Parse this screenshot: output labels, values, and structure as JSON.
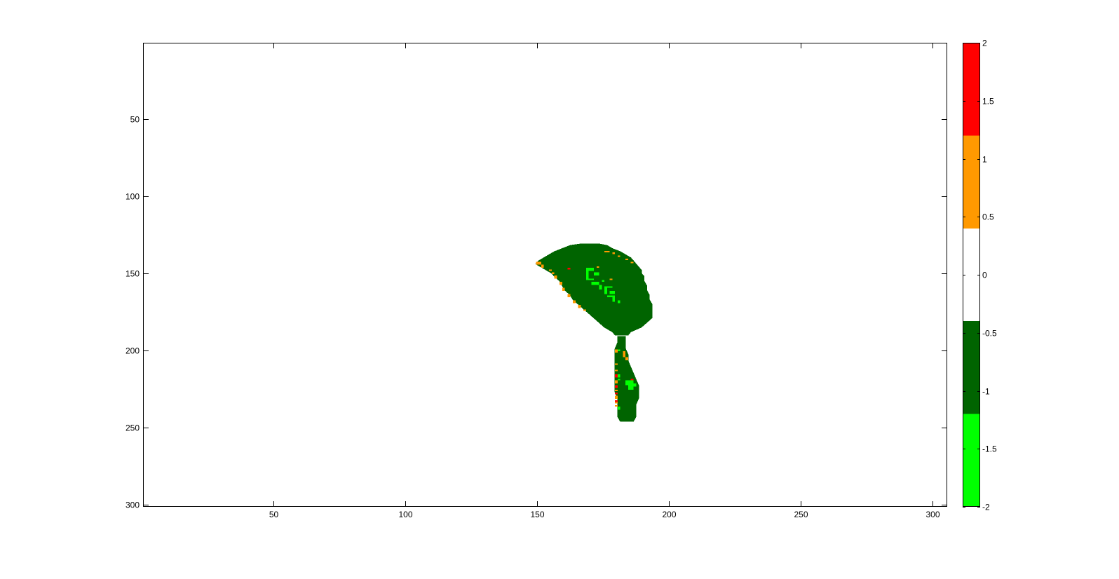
{
  "figure": {
    "background": "#ffffff"
  },
  "chart_data": {
    "type": "heatmap",
    "title": "",
    "xlabel": "",
    "ylabel": "",
    "xlim": [
      0.5,
      305.5
    ],
    "ylim": [
      0.5,
      301.5
    ],
    "y_reversed": true,
    "grid": false,
    "x_ticks": [
      50,
      100,
      150,
      200,
      250,
      300
    ],
    "y_ticks": [
      50,
      100,
      150,
      200,
      250,
      300
    ],
    "colorbar": {
      "location": "right",
      "clim": [
        -2,
        2
      ],
      "ticks": [
        2,
        1.5,
        1,
        0.5,
        0,
        -0.5,
        -1,
        -1.5,
        -2
      ],
      "tick_labels": [
        "2",
        "1.5",
        "1",
        "0.5",
        "0",
        "-0.5",
        "-1",
        "-1.5",
        "-2"
      ],
      "bands": [
        {
          "from": -2,
          "to": -1.2,
          "color": "#00ff00"
        },
        {
          "from": -1.2,
          "to": -0.4,
          "color": "#006400"
        },
        {
          "from": -0.4,
          "to": 0.4,
          "color": "#ffffff"
        },
        {
          "from": 0.4,
          "to": 1.2,
          "color": "#ff9900"
        },
        {
          "from": 1.2,
          "to": 2,
          "color": "#ff0000"
        }
      ]
    },
    "regions": [
      {
        "name": "main-lobe",
        "value": -0.8,
        "color": "#006400",
        "rows": [
          {
            "y": 131,
            "x": [
              167,
              173
            ]
          },
          {
            "y": 132,
            "x": [
              163,
              176
            ]
          },
          {
            "y": 134,
            "x": [
              160,
              178
            ]
          },
          {
            "y": 136,
            "x": [
              157,
              181
            ]
          },
          {
            "y": 138,
            "x": [
              155,
              183
            ]
          },
          {
            "y": 140,
            "x": [
              153,
              185
            ]
          },
          {
            "y": 142,
            "x": [
              151,
              186
            ]
          },
          {
            "y": 144,
            "x": [
              150,
              187
            ]
          },
          {
            "y": 146,
            "x": [
              152,
              188
            ]
          },
          {
            "y": 148,
            "x": [
              154,
              189
            ]
          },
          {
            "y": 150,
            "x": [
              156,
              189
            ]
          },
          {
            "y": 152,
            "x": [
              157,
              190
            ]
          },
          {
            "y": 155,
            "x": [
              159,
              190
            ]
          },
          {
            "y": 158,
            "x": [
              160,
              191
            ]
          },
          {
            "y": 161,
            "x": [
              161,
              191
            ]
          },
          {
            "y": 164,
            "x": [
              163,
              192
            ]
          },
          {
            "y": 167,
            "x": [
              164,
              192
            ]
          },
          {
            "y": 170,
            "x": [
              166,
              193
            ]
          },
          {
            "y": 173,
            "x": [
              168,
              193
            ]
          },
          {
            "y": 176,
            "x": [
              170,
              193
            ]
          },
          {
            "y": 179,
            "x": [
              172,
              193
            ]
          },
          {
            "y": 182,
            "x": [
              174,
              191
            ]
          },
          {
            "y": 185,
            "x": [
              176,
              189
            ]
          },
          {
            "y": 188,
            "x": [
              179,
              185
            ]
          },
          {
            "y": 190,
            "x": [
              180,
              184
            ]
          }
        ]
      },
      {
        "name": "stem",
        "value": -0.8,
        "color": "#006400",
        "rows": [
          {
            "y": 191,
            "x": [
              181,
              183
            ]
          },
          {
            "y": 195,
            "x": [
              181,
              183
            ]
          },
          {
            "y": 199,
            "x": [
              180,
              183
            ]
          },
          {
            "y": 203,
            "x": [
              180,
              184
            ]
          },
          {
            "y": 207,
            "x": [
              180,
              184
            ]
          },
          {
            "y": 211,
            "x": [
              180,
              185
            ]
          },
          {
            "y": 215,
            "x": [
              180,
              186
            ]
          },
          {
            "y": 219,
            "x": [
              180,
              187
            ]
          },
          {
            "y": 223,
            "x": [
              180,
              188
            ]
          },
          {
            "y": 227,
            "x": [
              180,
              188
            ]
          },
          {
            "y": 231,
            "x": [
              181,
              188
            ]
          },
          {
            "y": 235,
            "x": [
              181,
              187
            ]
          },
          {
            "y": 239,
            "x": [
              181,
              187
            ]
          },
          {
            "y": 243,
            "x": [
              181,
              187
            ]
          },
          {
            "y": 246,
            "x": [
              182,
              186
            ]
          }
        ]
      }
    ],
    "spots": [
      {
        "x": 150,
        "y": 143,
        "w": 2,
        "h": 2,
        "value": 1,
        "color": "#ff9900"
      },
      {
        "x": 152,
        "y": 145,
        "w": 1,
        "h": 2,
        "value": 1,
        "color": "#ff9900"
      },
      {
        "x": 155,
        "y": 148,
        "w": 1,
        "h": 1,
        "value": 1,
        "color": "#ff9900"
      },
      {
        "x": 156,
        "y": 150,
        "w": 1,
        "h": 1,
        "value": 1,
        "color": "#ff9900"
      },
      {
        "x": 157,
        "y": 152,
        "w": 1,
        "h": 2,
        "value": 1,
        "color": "#ff9900"
      },
      {
        "x": 159,
        "y": 156,
        "w": 1,
        "h": 2,
        "value": 1,
        "color": "#ff9900"
      },
      {
        "x": 160,
        "y": 160,
        "w": 1,
        "h": 2,
        "value": 1,
        "color": "#ff9900"
      },
      {
        "x": 162,
        "y": 164,
        "w": 1,
        "h": 2,
        "value": 1,
        "color": "#ff9900"
      },
      {
        "x": 164,
        "y": 168,
        "w": 1,
        "h": 2,
        "value": 1,
        "color": "#ff9900"
      },
      {
        "x": 166,
        "y": 171,
        "w": 1,
        "h": 2,
        "value": 1,
        "color": "#ff9900"
      },
      {
        "x": 168,
        "y": 174,
        "w": 1,
        "h": 1,
        "value": 1,
        "color": "#ff9900"
      },
      {
        "x": 176,
        "y": 136,
        "w": 2,
        "h": 1,
        "value": 1,
        "color": "#ff9900"
      },
      {
        "x": 179,
        "y": 137,
        "w": 1,
        "h": 1,
        "value": 1,
        "color": "#ff9900"
      },
      {
        "x": 181,
        "y": 139,
        "w": 1,
        "h": 1,
        "value": 1,
        "color": "#ff9900"
      },
      {
        "x": 184,
        "y": 141,
        "w": 1,
        "h": 1,
        "value": 1,
        "color": "#ff9900"
      },
      {
        "x": 186,
        "y": 143,
        "w": 1,
        "h": 1,
        "value": 1,
        "color": "#ff9900"
      },
      {
        "x": 173,
        "y": 146,
        "w": 1,
        "h": 1,
        "value": 1,
        "color": "#ff9900"
      },
      {
        "x": 178,
        "y": 154,
        "w": 1,
        "h": 1,
        "value": 1,
        "color": "#ff9900"
      },
      {
        "x": 162,
        "y": 147,
        "w": 1,
        "h": 1,
        "value": 1.6,
        "color": "#ff0000"
      },
      {
        "x": 183,
        "y": 201,
        "w": 1,
        "h": 4,
        "value": 1,
        "color": "#ff9900"
      },
      {
        "x": 184,
        "y": 205,
        "w": 1,
        "h": 2,
        "value": 1,
        "color": "#ff9900"
      },
      {
        "x": 180,
        "y": 200,
        "w": 1,
        "h": 2,
        "value": 1,
        "color": "#ff9900"
      },
      {
        "x": 180,
        "y": 209,
        "w": 1,
        "h": 1,
        "value": 1,
        "color": "#ff9900"
      },
      {
        "x": 180,
        "y": 213,
        "w": 1,
        "h": 1,
        "value": 1,
        "color": "#ff9900"
      },
      {
        "x": 180,
        "y": 220,
        "w": 1,
        "h": 2,
        "value": 1,
        "color": "#ff9900"
      },
      {
        "x": 180,
        "y": 226,
        "w": 1,
        "h": 1,
        "value": 1,
        "color": "#ff9900"
      },
      {
        "x": 180,
        "y": 230,
        "w": 1,
        "h": 2,
        "value": 1,
        "color": "#ff9900"
      },
      {
        "x": 180,
        "y": 234,
        "w": 1,
        "h": 1,
        "value": 1,
        "color": "#ff9900"
      },
      {
        "x": 180,
        "y": 236,
        "w": 1,
        "h": 1,
        "value": 1,
        "color": "#ff9900"
      },
      {
        "x": 180,
        "y": 216,
        "w": 1,
        "h": 2,
        "value": 1.6,
        "color": "#ff0000"
      },
      {
        "x": 180,
        "y": 223,
        "w": 1,
        "h": 2,
        "value": 1.6,
        "color": "#ff0000"
      },
      {
        "x": 180,
        "y": 228,
        "w": 1,
        "h": 1,
        "value": 1.6,
        "color": "#ff0000"
      },
      {
        "x": 186,
        "y": 219,
        "w": 1,
        "h": 2,
        "value": 1.6,
        "color": "#ff0000"
      },
      {
        "x": 180,
        "y": 233,
        "w": 1,
        "h": 1,
        "value": 1.6,
        "color": "#ff0000"
      },
      {
        "x": 169,
        "y": 147,
        "w": 3,
        "h": 2,
        "value": -1.6,
        "color": "#00ff00"
      },
      {
        "x": 169,
        "y": 149,
        "w": 1,
        "h": 5,
        "value": -1.6,
        "color": "#00ff00"
      },
      {
        "x": 169,
        "y": 154,
        "w": 3,
        "h": 1,
        "value": -1.6,
        "color": "#00ff00"
      },
      {
        "x": 172,
        "y": 150,
        "w": 2,
        "h": 2,
        "value": -1.6,
        "color": "#00ff00"
      },
      {
        "x": 171,
        "y": 156,
        "w": 3,
        "h": 2,
        "value": -1.6,
        "color": "#00ff00"
      },
      {
        "x": 174,
        "y": 158,
        "w": 1,
        "h": 3,
        "value": -1.6,
        "color": "#00ff00"
      },
      {
        "x": 176,
        "y": 159,
        "w": 3,
        "h": 1,
        "value": -1.6,
        "color": "#00ff00"
      },
      {
        "x": 176,
        "y": 160,
        "w": 1,
        "h": 4,
        "value": -1.6,
        "color": "#00ff00"
      },
      {
        "x": 178,
        "y": 162,
        "w": 2,
        "h": 2,
        "value": -1.6,
        "color": "#00ff00"
      },
      {
        "x": 177,
        "y": 165,
        "w": 3,
        "h": 1,
        "value": -1.6,
        "color": "#00ff00"
      },
      {
        "x": 179,
        "y": 166,
        "w": 1,
        "h": 3,
        "value": -1.6,
        "color": "#00ff00"
      },
      {
        "x": 175,
        "y": 155,
        "w": 1,
        "h": 1,
        "value": -1.6,
        "color": "#00ff00"
      },
      {
        "x": 181,
        "y": 168,
        "w": 1,
        "h": 2,
        "value": -1.6,
        "color": "#00ff00"
      },
      {
        "x": 181,
        "y": 216,
        "w": 1,
        "h": 2,
        "value": -1.6,
        "color": "#00ff00"
      },
      {
        "x": 181,
        "y": 219,
        "w": 1,
        "h": 1,
        "value": -1.6,
        "color": "#00ff00"
      },
      {
        "x": 184,
        "y": 220,
        "w": 3,
        "h": 3,
        "value": -1.6,
        "color": "#00ff00"
      },
      {
        "x": 185,
        "y": 223,
        "w": 2,
        "h": 3,
        "value": -1.6,
        "color": "#00ff00"
      },
      {
        "x": 187,
        "y": 222,
        "w": 1,
        "h": 2,
        "value": -1.6,
        "color": "#00ff00"
      },
      {
        "x": 181,
        "y": 237,
        "w": 1,
        "h": 2,
        "value": -1.6,
        "color": "#00ff00"
      },
      {
        "x": 181,
        "y": 200,
        "w": 1,
        "h": 1,
        "value": -1.6,
        "color": "#00ff00"
      }
    ]
  }
}
